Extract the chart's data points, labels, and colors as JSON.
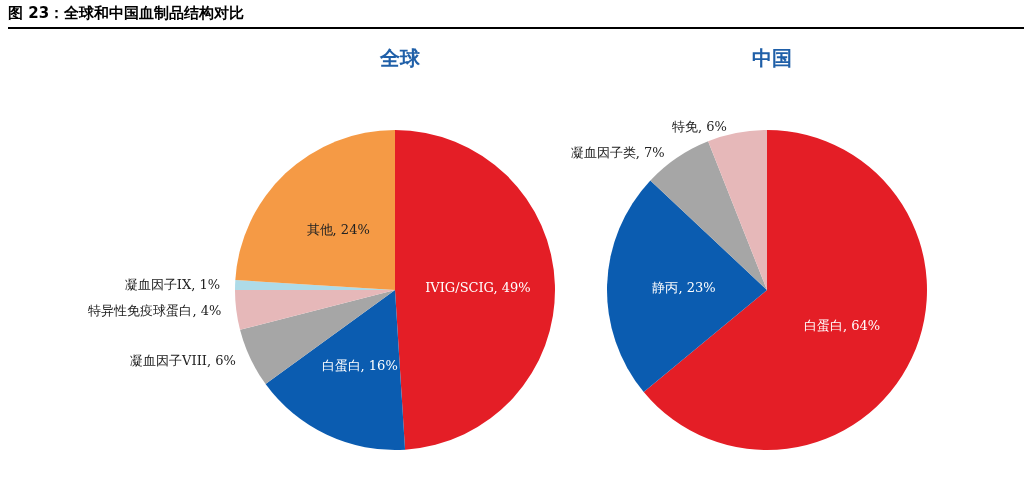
{
  "chart_data": [
    {
      "type": "pie",
      "title": "全球",
      "annotations": [
        "图 23：全球和中国血制品结构对比"
      ],
      "categories": [
        "IVIG/SCIG",
        "白蛋白",
        "凝血因子VIII",
        "特异性免疫球蛋白",
        "凝血因子IX",
        "其他"
      ],
      "values": [
        49,
        16,
        6,
        4,
        1,
        24
      ],
      "value_labels": [
        "49%",
        "16%",
        "6%",
        "4%",
        "1%",
        "24%"
      ],
      "colors": [
        "#e41e26",
        "#0b5cb0",
        "#a6a6a6",
        "#e6b8b9",
        "#aedbe8",
        "#f59a45"
      ]
    },
    {
      "type": "pie",
      "title": "中国",
      "categories": [
        "白蛋白",
        "静丙",
        "凝血因子类",
        "特免"
      ],
      "values": [
        64,
        23,
        7,
        6
      ],
      "value_labels": [
        "64%",
        "23%",
        "7%",
        "6%"
      ],
      "colors": [
        "#e41e26",
        "#0b5cb0",
        "#a6a6a6",
        "#e6b8b9"
      ]
    }
  ]
}
